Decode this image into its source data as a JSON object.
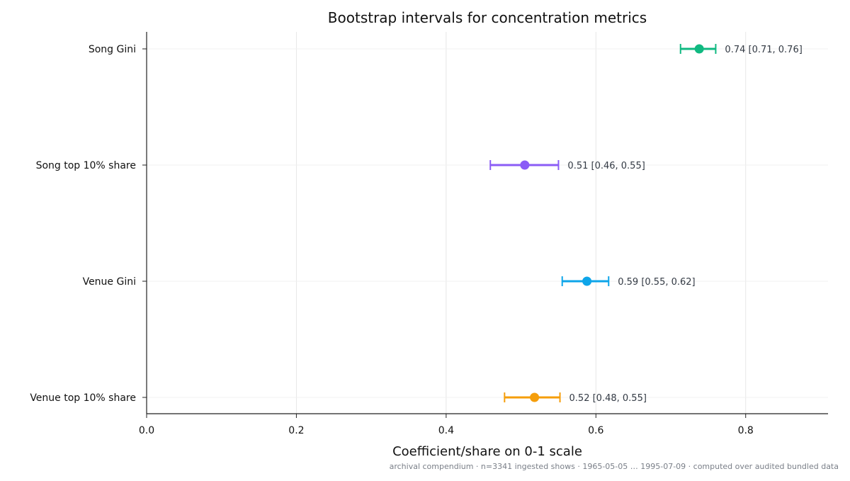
{
  "chart_data": {
    "type": "errorbar",
    "title": "Bootstrap intervals for concentration metrics",
    "xlabel": "Coefficient/share on 0-1 scale",
    "ylabel": "",
    "xlim": [
      0,
      0.91
    ],
    "xticks": [
      0.0,
      0.2,
      0.4,
      0.6,
      0.8
    ],
    "xtick_labels": [
      "0.0",
      "0.2",
      "0.4",
      "0.6",
      "0.8"
    ],
    "grid": true,
    "metrics": [
      {
        "name": "Song Gini",
        "estimate": 0.738,
        "low": 0.713,
        "high": 0.76,
        "label": "0.74 [0.71, 0.76]",
        "color": "#10b981"
      },
      {
        "name": "Song top 10% share",
        "estimate": 0.505,
        "low": 0.459,
        "high": 0.55,
        "label": "0.51 [0.46, 0.55]",
        "color": "#8b5cf6"
      },
      {
        "name": "Venue Gini",
        "estimate": 0.588,
        "low": 0.555,
        "high": 0.617,
        "label": "0.59 [0.55, 0.62]",
        "color": "#0ea5e9"
      },
      {
        "name": "Venue top 10% share",
        "estimate": 0.518,
        "low": 0.478,
        "high": 0.552,
        "label": "0.52 [0.48, 0.55]",
        "color": "#f59e0b"
      }
    ]
  },
  "footer": "archival compendium · n=3341 ingested shows · 1965-05-05 … 1995-07-09 · computed over audited bundled data"
}
